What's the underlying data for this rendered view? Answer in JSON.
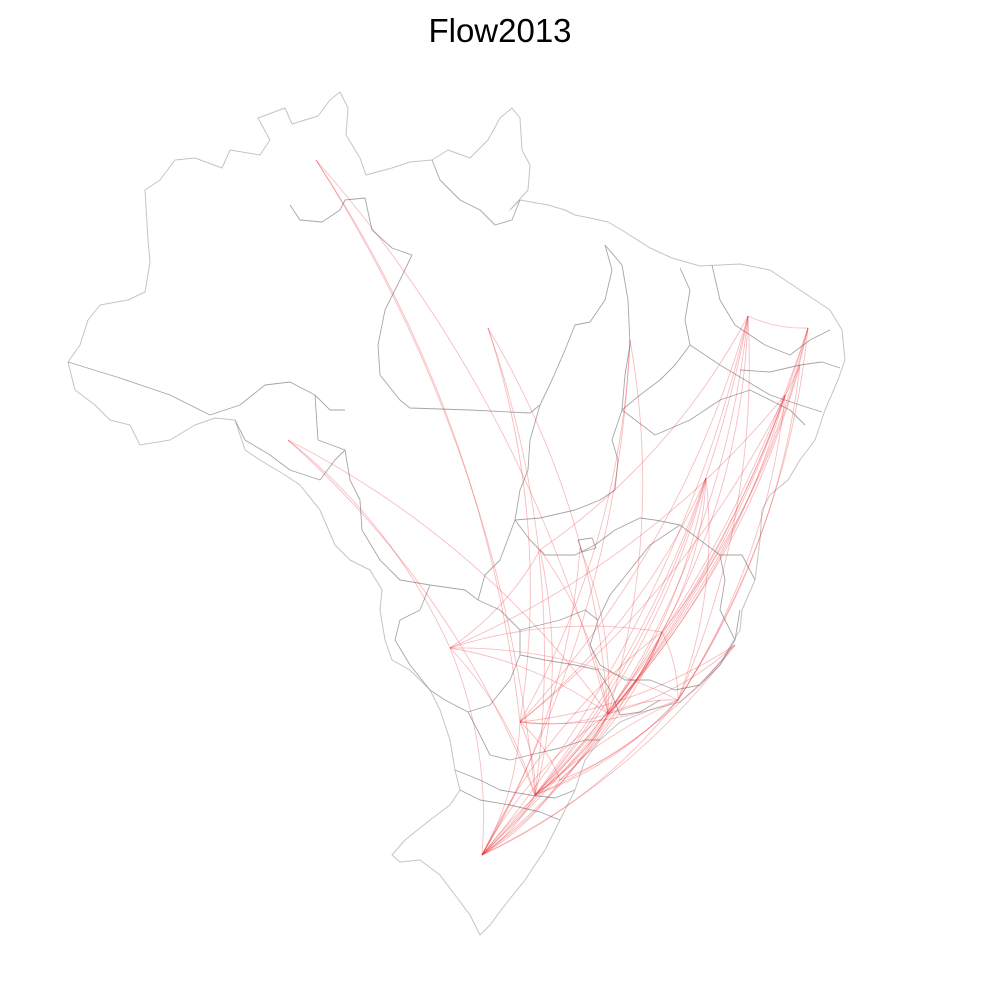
{
  "title": "Flow2013",
  "flow_color": "#e8282e",
  "border_color": "#a6a6a6"
}
